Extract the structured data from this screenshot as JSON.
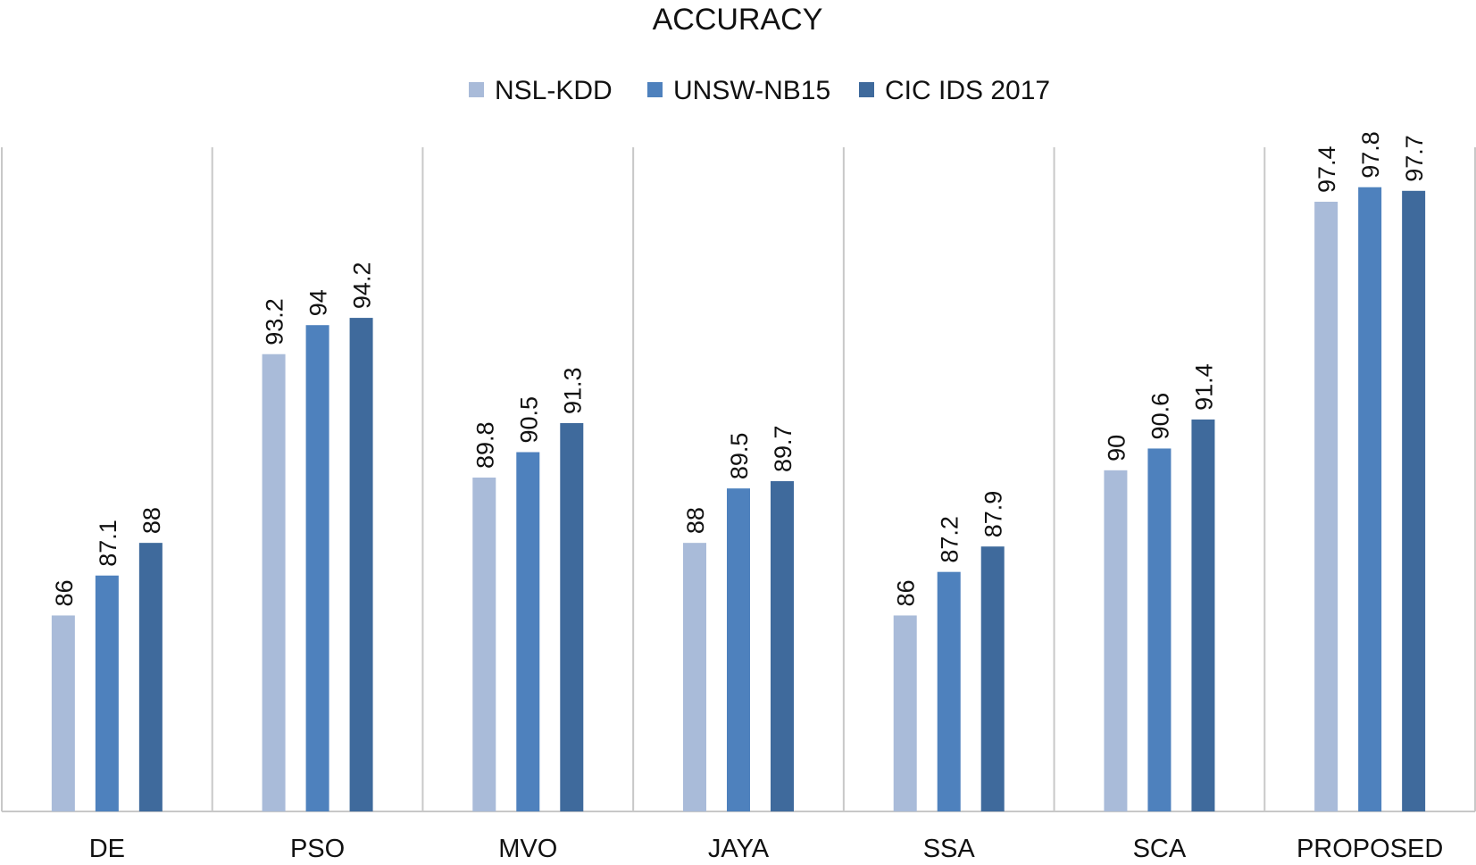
{
  "chart_data": {
    "type": "bar",
    "title": "ACCURACY",
    "xlabel": "",
    "ylabel": "",
    "categories": [
      "DE",
      "PSO",
      "MVO",
      "JAYA",
      "SSA",
      "SCA",
      "PROPOSED"
    ],
    "series": [
      {
        "name": "NSL-KDD",
        "color": "#A9BBD9",
        "values": [
          86,
          93.2,
          89.8,
          88,
          86,
          90,
          97.4
        ]
      },
      {
        "name": "UNSW-NB15",
        "color": "#4E81BD",
        "values": [
          87.1,
          94,
          90.5,
          89.5,
          87.2,
          90.6,
          97.8
        ]
      },
      {
        "name": "CIC IDS 2017",
        "color": "#3F6A9C",
        "values": [
          88,
          94.2,
          91.3,
          89.7,
          87.9,
          91.4,
          97.7
        ]
      }
    ],
    "ylim": [
      80.6,
      98.9
    ],
    "y_axis_visible": false,
    "grid": "vertical category separators",
    "legend": "top-center",
    "data_labels": "rotated vertical above bars"
  }
}
